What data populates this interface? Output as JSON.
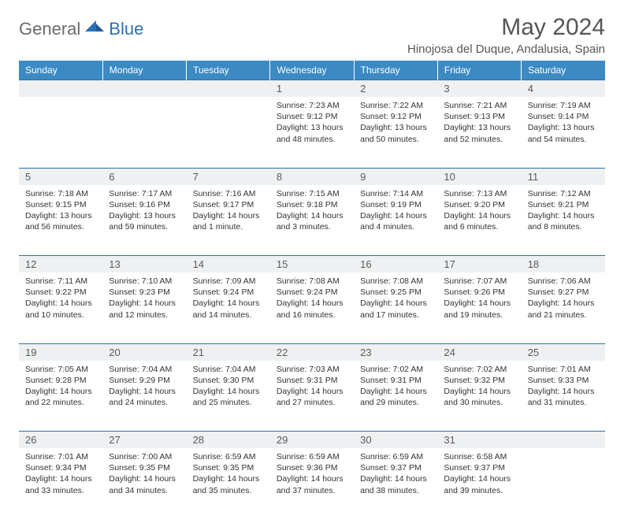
{
  "logo": {
    "general": "General",
    "blue": "Blue"
  },
  "title": "May 2024",
  "location": "Hinojosa del Duque, Andalusia, Spain",
  "colors": {
    "header_bg": "#3b8ac4",
    "header_text": "#ffffff",
    "border": "#2b6fb3",
    "daynum_bg": "#eef0f2",
    "logo_blue": "#2b6fb3",
    "logo_grey": "#6b6b6b"
  },
  "weekdays": [
    "Sunday",
    "Monday",
    "Tuesday",
    "Wednesday",
    "Thursday",
    "Friday",
    "Saturday"
  ],
  "weeks": [
    [
      null,
      null,
      null,
      {
        "n": "1",
        "sunrise": "7:23 AM",
        "sunset": "9:12 PM",
        "daylight": "13 hours and 48 minutes."
      },
      {
        "n": "2",
        "sunrise": "7:22 AM",
        "sunset": "9:12 PM",
        "daylight": "13 hours and 50 minutes."
      },
      {
        "n": "3",
        "sunrise": "7:21 AM",
        "sunset": "9:13 PM",
        "daylight": "13 hours and 52 minutes."
      },
      {
        "n": "4",
        "sunrise": "7:19 AM",
        "sunset": "9:14 PM",
        "daylight": "13 hours and 54 minutes."
      }
    ],
    [
      {
        "n": "5",
        "sunrise": "7:18 AM",
        "sunset": "9:15 PM",
        "daylight": "13 hours and 56 minutes."
      },
      {
        "n": "6",
        "sunrise": "7:17 AM",
        "sunset": "9:16 PM",
        "daylight": "13 hours and 59 minutes."
      },
      {
        "n": "7",
        "sunrise": "7:16 AM",
        "sunset": "9:17 PM",
        "daylight": "14 hours and 1 minute."
      },
      {
        "n": "8",
        "sunrise": "7:15 AM",
        "sunset": "9:18 PM",
        "daylight": "14 hours and 3 minutes."
      },
      {
        "n": "9",
        "sunrise": "7:14 AM",
        "sunset": "9:19 PM",
        "daylight": "14 hours and 4 minutes."
      },
      {
        "n": "10",
        "sunrise": "7:13 AM",
        "sunset": "9:20 PM",
        "daylight": "14 hours and 6 minutes."
      },
      {
        "n": "11",
        "sunrise": "7:12 AM",
        "sunset": "9:21 PM",
        "daylight": "14 hours and 8 minutes."
      }
    ],
    [
      {
        "n": "12",
        "sunrise": "7:11 AM",
        "sunset": "9:22 PM",
        "daylight": "14 hours and 10 minutes."
      },
      {
        "n": "13",
        "sunrise": "7:10 AM",
        "sunset": "9:23 PM",
        "daylight": "14 hours and 12 minutes."
      },
      {
        "n": "14",
        "sunrise": "7:09 AM",
        "sunset": "9:24 PM",
        "daylight": "14 hours and 14 minutes."
      },
      {
        "n": "15",
        "sunrise": "7:08 AM",
        "sunset": "9:24 PM",
        "daylight": "14 hours and 16 minutes."
      },
      {
        "n": "16",
        "sunrise": "7:08 AM",
        "sunset": "9:25 PM",
        "daylight": "14 hours and 17 minutes."
      },
      {
        "n": "17",
        "sunrise": "7:07 AM",
        "sunset": "9:26 PM",
        "daylight": "14 hours and 19 minutes."
      },
      {
        "n": "18",
        "sunrise": "7:06 AM",
        "sunset": "9:27 PM",
        "daylight": "14 hours and 21 minutes."
      }
    ],
    [
      {
        "n": "19",
        "sunrise": "7:05 AM",
        "sunset": "9:28 PM",
        "daylight": "14 hours and 22 minutes."
      },
      {
        "n": "20",
        "sunrise": "7:04 AM",
        "sunset": "9:29 PM",
        "daylight": "14 hours and 24 minutes."
      },
      {
        "n": "21",
        "sunrise": "7:04 AM",
        "sunset": "9:30 PM",
        "daylight": "14 hours and 25 minutes."
      },
      {
        "n": "22",
        "sunrise": "7:03 AM",
        "sunset": "9:31 PM",
        "daylight": "14 hours and 27 minutes."
      },
      {
        "n": "23",
        "sunrise": "7:02 AM",
        "sunset": "9:31 PM",
        "daylight": "14 hours and 29 minutes."
      },
      {
        "n": "24",
        "sunrise": "7:02 AM",
        "sunset": "9:32 PM",
        "daylight": "14 hours and 30 minutes."
      },
      {
        "n": "25",
        "sunrise": "7:01 AM",
        "sunset": "9:33 PM",
        "daylight": "14 hours and 31 minutes."
      }
    ],
    [
      {
        "n": "26",
        "sunrise": "7:01 AM",
        "sunset": "9:34 PM",
        "daylight": "14 hours and 33 minutes."
      },
      {
        "n": "27",
        "sunrise": "7:00 AM",
        "sunset": "9:35 PM",
        "daylight": "14 hours and 34 minutes."
      },
      {
        "n": "28",
        "sunrise": "6:59 AM",
        "sunset": "9:35 PM",
        "daylight": "14 hours and 35 minutes."
      },
      {
        "n": "29",
        "sunrise": "6:59 AM",
        "sunset": "9:36 PM",
        "daylight": "14 hours and 37 minutes."
      },
      {
        "n": "30",
        "sunrise": "6:59 AM",
        "sunset": "9:37 PM",
        "daylight": "14 hours and 38 minutes."
      },
      {
        "n": "31",
        "sunrise": "6:58 AM",
        "sunset": "9:37 PM",
        "daylight": "14 hours and 39 minutes."
      },
      null
    ]
  ],
  "labels": {
    "sunrise": "Sunrise:",
    "sunset": "Sunset:",
    "daylight": "Daylight:"
  }
}
